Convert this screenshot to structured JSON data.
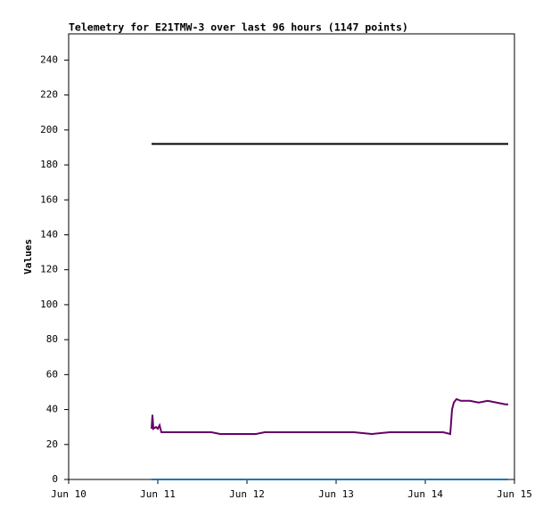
{
  "chart_data": {
    "type": "line",
    "title": "Telemetry for E21TMW-3 over last 96 hours (1147 points)",
    "y_label": "Values",
    "xlim": [
      10,
      15
    ],
    "xticks": [
      {
        "value": 10,
        "label": "Jun 10"
      },
      {
        "value": 11,
        "label": "Jun 11"
      },
      {
        "value": 12,
        "label": "Jun 12"
      },
      {
        "value": 13,
        "label": "Jun 13"
      },
      {
        "value": 14,
        "label": "Jun 14"
      },
      {
        "value": 15,
        "label": "Jun 15"
      }
    ],
    "ylim": [
      0,
      255
    ],
    "yticks": [
      0,
      20,
      40,
      60,
      80,
      100,
      120,
      140,
      160,
      180,
      200,
      220,
      240
    ],
    "grid": false,
    "series": [
      {
        "color": "#000000",
        "x": [
          10.93,
          14.93
        ],
        "values": [
          192,
          192
        ]
      },
      {
        "color": "#660066",
        "x": [
          10.93,
          10.94,
          10.95,
          10.98,
          11.0,
          11.02,
          11.04,
          11.06,
          11.1,
          11.2,
          11.3,
          11.4,
          11.5,
          11.6,
          11.7,
          11.8,
          11.9,
          12.0,
          12.1,
          12.2,
          12.4,
          12.6,
          12.8,
          13.0,
          13.2,
          13.4,
          13.6,
          13.8,
          14.0,
          14.2,
          14.28,
          14.3,
          14.32,
          14.35,
          14.4,
          14.5,
          14.6,
          14.7,
          14.8,
          14.9,
          14.93
        ],
        "values": [
          29,
          37,
          29,
          30,
          29,
          31,
          27,
          27,
          27,
          27,
          27,
          27,
          27,
          27,
          26,
          26,
          26,
          26,
          26,
          27,
          27,
          27,
          27,
          27,
          27,
          26,
          27,
          27,
          27,
          27,
          26,
          40,
          44,
          46,
          45,
          45,
          44,
          45,
          44,
          43,
          43
        ]
      },
      {
        "color": "#1f77b4",
        "x": [
          10.93,
          14.93
        ],
        "values": [
          0,
          0
        ]
      }
    ]
  }
}
